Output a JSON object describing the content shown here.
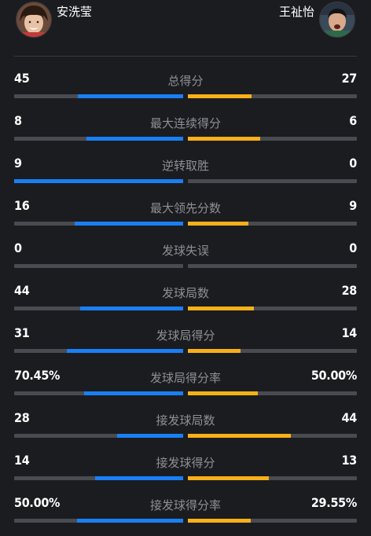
{
  "players": {
    "left": {
      "name": "安洗莹",
      "color": "#1a7ff5"
    },
    "right": {
      "name": "王祉怡",
      "color": "#f8b019"
    }
  },
  "stats": [
    {
      "label": "总得分",
      "left": "45",
      "right": "27",
      "left_frac": 0.625,
      "right_frac": 0.375
    },
    {
      "label": "最大连续得分",
      "left": "8",
      "right": "6",
      "left_frac": 0.571,
      "right_frac": 0.429
    },
    {
      "label": "逆转取胜",
      "left": "9",
      "right": "0",
      "left_frac": 1.0,
      "right_frac": 0.0
    },
    {
      "label": "最大领先分数",
      "left": "16",
      "right": "9",
      "left_frac": 0.64,
      "right_frac": 0.36
    },
    {
      "label": "发球失误",
      "left": "0",
      "right": "0",
      "left_frac": 0.0,
      "right_frac": 0.0
    },
    {
      "label": "发球局数",
      "left": "44",
      "right": "28",
      "left_frac": 0.611,
      "right_frac": 0.389
    },
    {
      "label": "发球局得分",
      "left": "31",
      "right": "14",
      "left_frac": 0.689,
      "right_frac": 0.311
    },
    {
      "label": "发球局得分率",
      "left": "70.45%",
      "right": "50.00%",
      "left_frac": 0.585,
      "right_frac": 0.415
    },
    {
      "label": "接发球局数",
      "left": "28",
      "right": "44",
      "left_frac": 0.389,
      "right_frac": 0.611
    },
    {
      "label": "接发球得分",
      "left": "14",
      "right": "13",
      "left_frac": 0.519,
      "right_frac": 0.481
    },
    {
      "label": "接发球得分率",
      "left": "50.00%",
      "right": "29.55%",
      "left_frac": 0.629,
      "right_frac": 0.371
    }
  ]
}
